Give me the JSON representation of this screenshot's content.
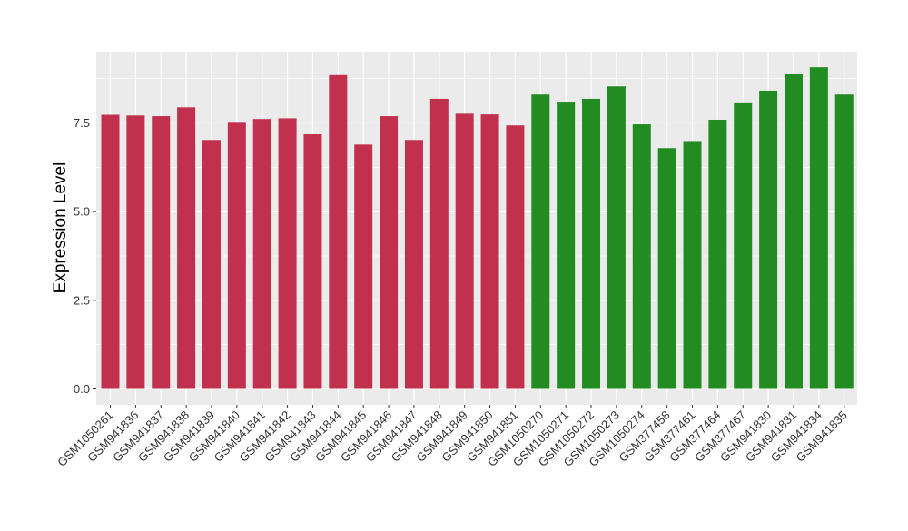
{
  "chart_data": {
    "type": "bar",
    "title": "",
    "xlabel": "",
    "ylabel": "Expression Level",
    "ylim": [
      0,
      9.5
    ],
    "yticks": [
      0,
      2.5,
      5,
      7.5
    ],
    "ytick_labels": [
      "0.0",
      "2.5",
      "5.0",
      "7.5"
    ],
    "grid": true,
    "legend": "none",
    "colors": {
      "group1": "#C1304D",
      "group2": "#228B22",
      "panel": "#EBEBEB",
      "grid": "#FFFFFF"
    },
    "categories": [
      "GSM1050261",
      "GSM941836",
      "GSM941837",
      "GSM941838",
      "GSM941839",
      "GSM941840",
      "GSM941841",
      "GSM941842",
      "GSM941843",
      "GSM941844",
      "GSM941845",
      "GSM941846",
      "GSM941847",
      "GSM941848",
      "GSM941849",
      "GSM941850",
      "GSM941851",
      "GSM1050270",
      "GSM1050271",
      "GSM1050272",
      "GSM1050273",
      "GSM1050274",
      "GSM377458",
      "GSM377461",
      "GSM377464",
      "GSM377467",
      "GSM941830",
      "GSM941831",
      "GSM941834",
      "GSM941835"
    ],
    "values": [
      7.73,
      7.71,
      7.69,
      7.94,
      7.02,
      7.53,
      7.61,
      7.63,
      7.18,
      8.85,
      6.89,
      7.69,
      7.02,
      8.18,
      7.76,
      7.74,
      7.43,
      8.3,
      8.1,
      8.18,
      8.53,
      7.46,
      6.79,
      6.99,
      7.59,
      8.08,
      8.41,
      8.89,
      9.07,
      8.3
    ],
    "groups": [
      1,
      1,
      1,
      1,
      1,
      1,
      1,
      1,
      1,
      1,
      1,
      1,
      1,
      1,
      1,
      1,
      1,
      2,
      2,
      2,
      2,
      2,
      2,
      2,
      2,
      2,
      2,
      2,
      2,
      2
    ]
  }
}
